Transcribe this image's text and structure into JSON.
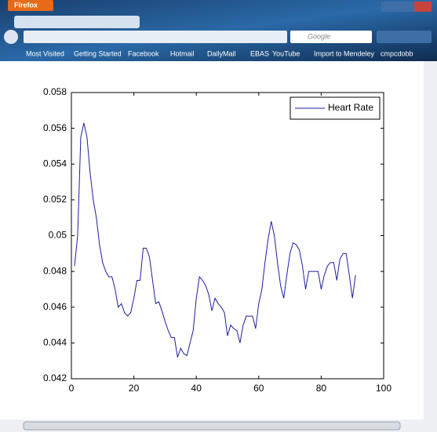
{
  "browser": {
    "app_button": "Firefox",
    "search_placeholder": "Google",
    "bookmarks": [
      "Most Visited",
      "Getting Started",
      "Facebook",
      "Hotmail",
      "DailyMail",
      "EBAS",
      "YouTube",
      "Import to Mendeley",
      "cmpcdobb"
    ]
  },
  "chart_data": {
    "type": "line",
    "x": [
      1,
      2,
      3,
      4,
      5,
      6,
      7,
      8,
      9,
      10,
      11,
      12,
      13,
      14,
      15,
      16,
      17,
      18,
      19,
      20,
      21,
      22,
      23,
      24,
      25,
      26,
      27,
      28,
      29,
      30,
      31,
      32,
      33,
      34,
      35,
      36,
      37,
      38,
      39,
      40,
      41,
      42,
      43,
      44,
      45,
      46,
      47,
      48,
      49,
      50,
      51,
      52,
      53,
      54,
      55,
      56,
      57,
      58,
      59,
      60,
      61,
      62,
      63,
      64,
      65,
      66,
      67,
      68,
      69,
      70,
      71,
      72,
      73,
      74,
      75,
      76,
      77,
      78,
      79,
      80,
      81,
      82,
      83,
      84,
      85,
      86,
      87,
      88,
      89,
      90,
      91
    ],
    "series": [
      {
        "name": "Heart Rate",
        "color": "#1f1fa0",
        "values": [
          0.0483,
          0.05,
          0.0555,
          0.0563,
          0.0555,
          0.0535,
          0.052,
          0.051,
          0.0495,
          0.0485,
          0.048,
          0.0477,
          0.0477,
          0.047,
          0.046,
          0.0462,
          0.0457,
          0.0455,
          0.0457,
          0.0465,
          0.0475,
          0.0475,
          0.0493,
          0.0493,
          0.0488,
          0.0475,
          0.0462,
          0.0463,
          0.0458,
          0.0452,
          0.0447,
          0.0443,
          0.0443,
          0.0432,
          0.0437,
          0.0434,
          0.0433,
          0.044,
          0.0447,
          0.0465,
          0.0477,
          0.0475,
          0.0472,
          0.0467,
          0.0458,
          0.0465,
          0.0462,
          0.046,
          0.0457,
          0.0444,
          0.045,
          0.0448,
          0.0447,
          0.044,
          0.045,
          0.0455,
          0.0455,
          0.0455,
          0.0448,
          0.0462,
          0.047,
          0.0485,
          0.0498,
          0.0508,
          0.05,
          0.0485,
          0.0472,
          0.0465,
          0.0478,
          0.049,
          0.0496,
          0.0495,
          0.0492,
          0.0483,
          0.047,
          0.048,
          0.048,
          0.048,
          0.048,
          0.047,
          0.0478,
          0.0483,
          0.0485,
          0.0485,
          0.0475,
          0.0487,
          0.049,
          0.049,
          0.0478,
          0.0465,
          0.0478
        ]
      }
    ],
    "xlim": [
      0,
      100
    ],
    "xticks": [
      0,
      20,
      40,
      60,
      80,
      100
    ],
    "ylim": [
      0.042,
      0.058
    ],
    "yticks": [
      0.042,
      0.044,
      0.046,
      0.048,
      0.05,
      0.052,
      0.054,
      0.056,
      0.058
    ],
    "legend": "upper right"
  }
}
